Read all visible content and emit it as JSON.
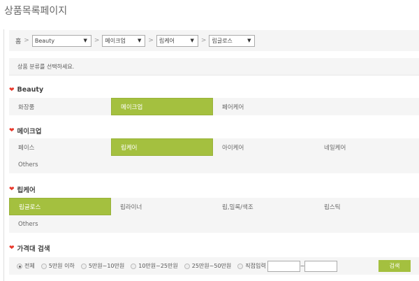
{
  "title": "상품목록페이지",
  "breadcrumb": {
    "home": "홈",
    "sep": ">",
    "selects": [
      "Beauty",
      "메이크업",
      "립케어",
      "립글로스"
    ]
  },
  "message": "상품 분류를 선택하세요.",
  "sections": [
    {
      "title": "Beauty",
      "items": [
        "화장품",
        "메이크업",
        "페어케어"
      ],
      "selected": 1
    },
    {
      "title": "메이크업",
      "items": [
        "페이스",
        "립케어",
        "아이케어",
        "네일케어",
        "Others"
      ],
      "selected": 1
    },
    {
      "title": "립케어",
      "items": [
        "립글로스",
        "립라이너",
        "립,밀록/색조",
        "립스틱",
        "Others"
      ],
      "selected": 0
    }
  ],
  "price": {
    "title": "가격대 검색",
    "options": [
      "전체",
      "5만원 이하",
      "5만원~10만원",
      "10만원~25만원",
      "25만원~50만원",
      "직접입력"
    ],
    "selected": 0,
    "tilde": "~",
    "search": "검색"
  },
  "colors": {
    "accent": "#a4c03f",
    "chevron": "#e8382b"
  }
}
